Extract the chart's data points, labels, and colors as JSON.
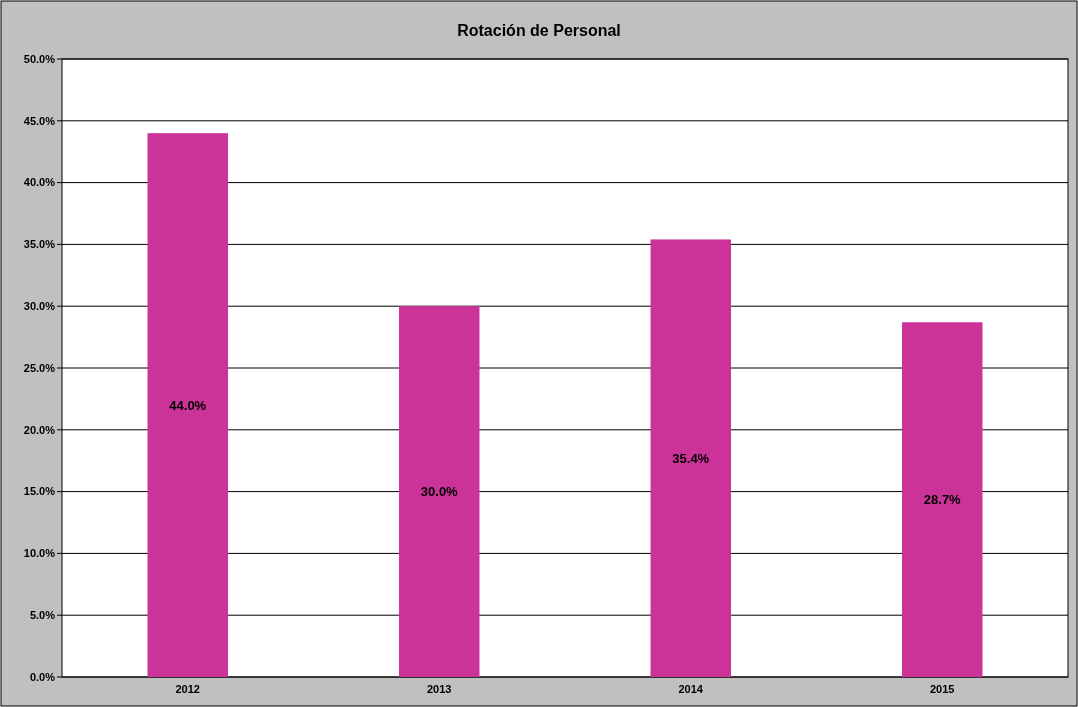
{
  "chart_data": {
    "type": "bar",
    "title": "Rotación de Personal",
    "categories": [
      "2012",
      "2013",
      "2014",
      "2015"
    ],
    "values": [
      44.0,
      30.0,
      35.4,
      28.7
    ],
    "value_labels": [
      "44.0%",
      "30.0%",
      "35.4%",
      "28.7%"
    ],
    "color": "#cc3399",
    "ylim": [
      0,
      50
    ],
    "yticks": [
      {
        "value": 0,
        "label": "0.0%"
      },
      {
        "value": 5,
        "label": "5.0%"
      },
      {
        "value": 10,
        "label": "10.0%"
      },
      {
        "value": 15,
        "label": "15.0%"
      },
      {
        "value": 20,
        "label": "20.0%"
      },
      {
        "value": 25,
        "label": "25.0%"
      },
      {
        "value": 30,
        "label": "30.0%"
      },
      {
        "value": 35,
        "label": "35.0%"
      },
      {
        "value": 40,
        "label": "40.0%"
      },
      {
        "value": 45,
        "label": "45.0%"
      },
      {
        "value": 50,
        "label": "50.0%"
      }
    ],
    "grid": "y"
  }
}
